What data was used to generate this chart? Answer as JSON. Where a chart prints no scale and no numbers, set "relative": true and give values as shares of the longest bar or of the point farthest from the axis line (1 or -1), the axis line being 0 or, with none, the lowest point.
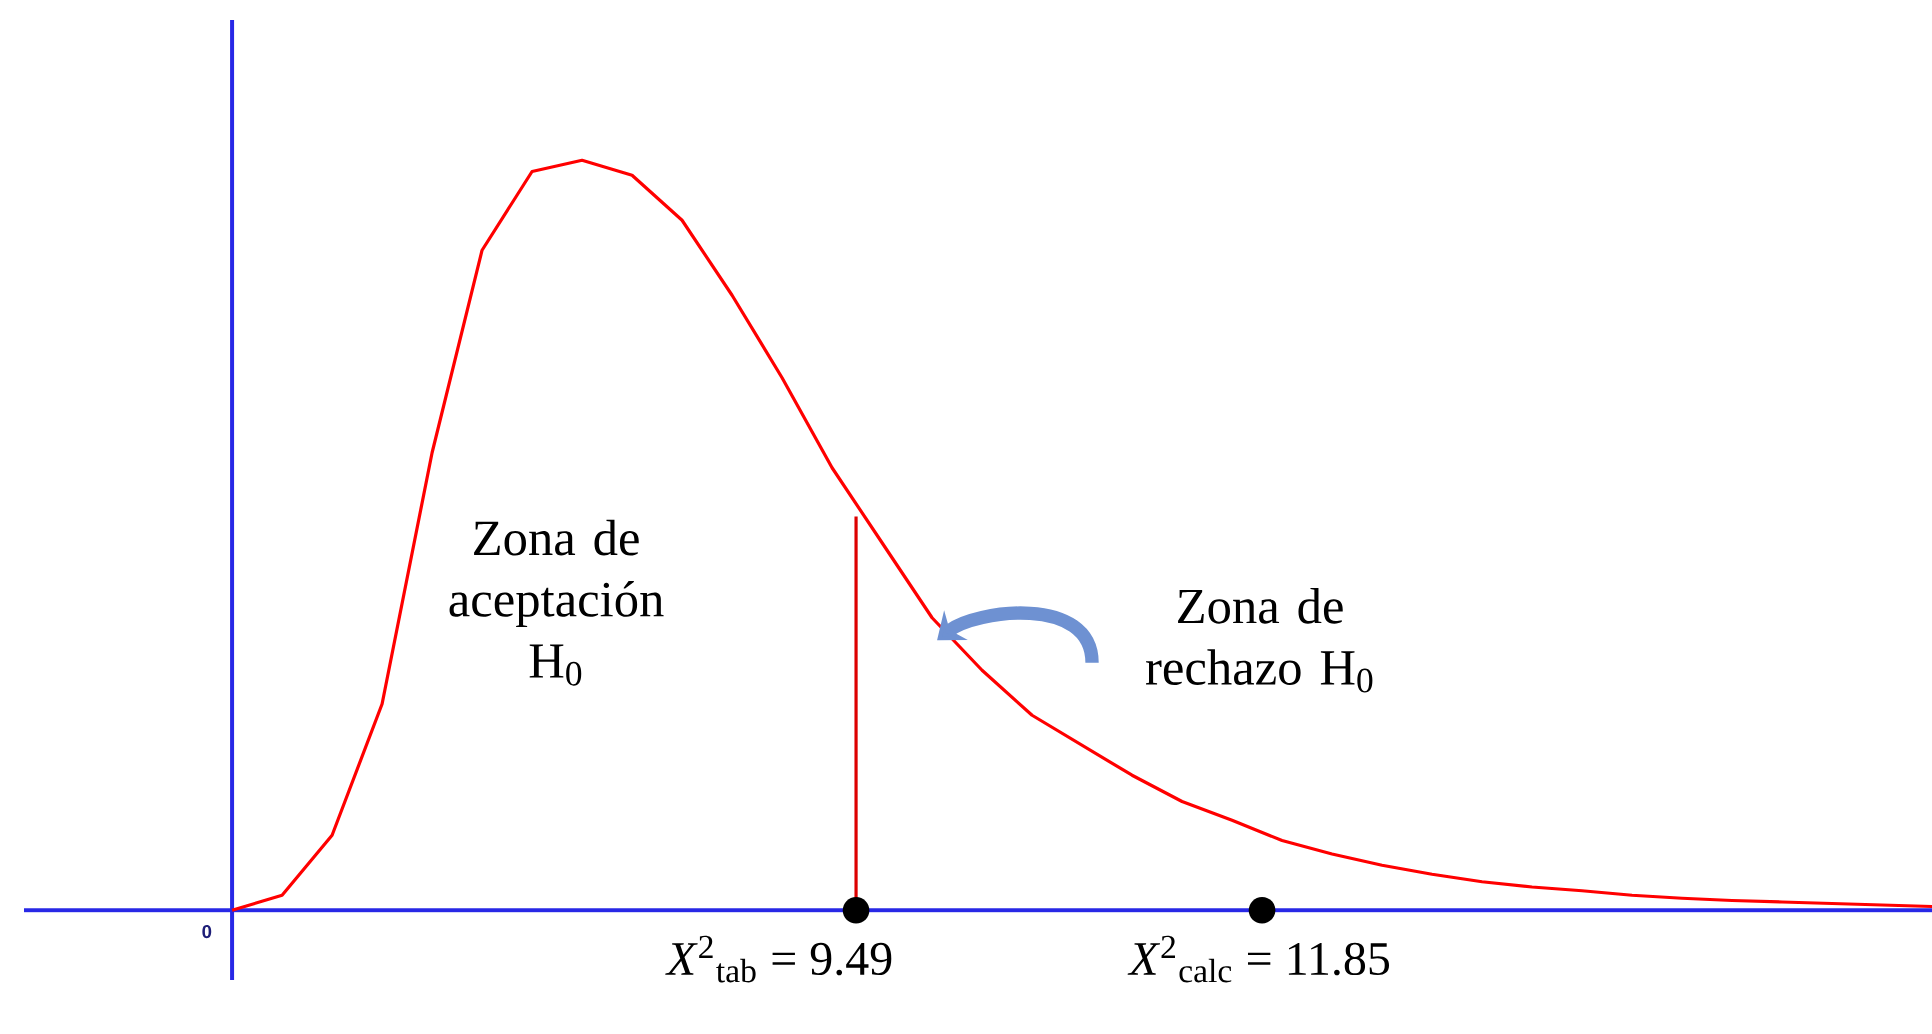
{
  "chart_data": {
    "type": "line",
    "relative": true,
    "annotations": [
      "Zona de aceptación H$_{0}$",
      "Zona de rechazo H$_{0}$",
      "*X*$^{2}$$_{tab}$ = 9.49",
      "*X*$^{2}$$_{calc}$ = 11.85",
      "0"
    ],
    "categories": [
      null,
      null,
      null,
      null,
      null,
      null,
      null,
      null,
      null,
      null,
      null,
      null,
      null,
      null,
      null,
      null,
      null,
      null,
      null,
      null,
      null,
      null,
      null,
      null,
      null,
      null,
      null,
      null,
      null,
      null,
      null,
      null,
      null,
      null,
      null
    ],
    "series": [
      {
        "color": "#ff0000",
        "values": [
          0,
          0.02,
          0.1,
          0.275,
          0.61,
          0.88,
          0.985,
          1.0,
          0.98,
          0.92,
          0.82,
          0.71,
          0.59,
          0.49,
          0.39,
          0.32,
          0.26,
          0.22,
          0.18,
          0.145,
          0.12,
          0.093,
          0.075,
          0.06,
          0.048,
          0.038,
          0.031,
          0.026,
          0.02,
          0.016,
          0.013,
          0.011,
          0.009,
          0.007,
          0.005
        ]
      }
    ]
  }
}
